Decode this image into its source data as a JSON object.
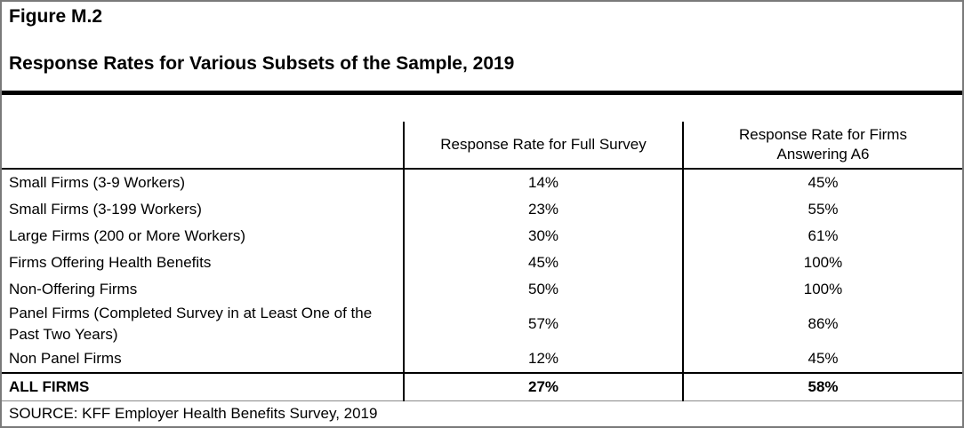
{
  "figure": {
    "label": "Figure M.2",
    "title": "Response Rates for Various Subsets of the Sample, 2019"
  },
  "table": {
    "columns": [
      "",
      "Response Rate for Full Survey",
      "Response Rate for Firms Answering A6"
    ],
    "rows": [
      {
        "label": "Small Firms (3-9 Workers)",
        "full_survey": "14%",
        "answering_a6": "45%"
      },
      {
        "label": "Small Firms (3-199 Workers)",
        "full_survey": "23%",
        "answering_a6": "55%"
      },
      {
        "label": "Large Firms (200 or More Workers)",
        "full_survey": "30%",
        "answering_a6": "61%"
      },
      {
        "label": "Firms Offering Health Benefits",
        "full_survey": "45%",
        "answering_a6": "100%"
      },
      {
        "label": "Non-Offering Firms",
        "full_survey": "50%",
        "answering_a6": "100%"
      },
      {
        "label": "Panel Firms (Completed Survey in at Least One of the Past Two Years)",
        "full_survey": "57%",
        "answering_a6": "86%"
      },
      {
        "label": "Non Panel Firms",
        "full_survey": "12%",
        "answering_a6": "45%"
      }
    ],
    "total_row": {
      "label": "ALL FIRMS",
      "full_survey": "27%",
      "answering_a6": "58%"
    }
  },
  "source": "SOURCE: KFF Employer Health Benefits Survey, 2019",
  "colors": {
    "text": "#000000",
    "rule": "#000000",
    "outer_border": "#7a7a7a"
  }
}
